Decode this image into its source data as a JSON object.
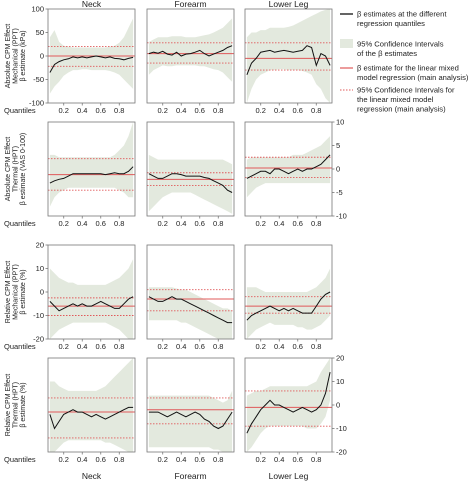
{
  "colors": {
    "band": "#e3e9de",
    "series": "#111111",
    "regression": "#e0595a",
    "frame": "#777777"
  },
  "chart_data": {
    "type": "line",
    "columns": [
      "Neck",
      "Forearm",
      "Lower Leg"
    ],
    "bottom_columns": [
      "Neck",
      "Forearm",
      "Lower Leg"
    ],
    "x_label": "Quantiles",
    "x_ticks": [
      "0.2",
      "0.4",
      "0.6",
      "0.8"
    ],
    "x": [
      0.05,
      0.1,
      0.15,
      0.2,
      0.25,
      0.3,
      0.35,
      0.4,
      0.45,
      0.5,
      0.55,
      0.6,
      0.65,
      0.7,
      0.75,
      0.8,
      0.85,
      0.9,
      0.95
    ],
    "xlim": [
      0.03,
      0.97
    ],
    "legend": [
      {
        "kind": "line",
        "text": [
          "β estimates at the different",
          "regression quantiles"
        ]
      },
      {
        "kind": "band",
        "text": [
          "95% Confidence Intervals",
          "of the β estimates"
        ]
      },
      {
        "kind": "solid",
        "text": [
          "β estimate for the linear mixed",
          "model regression (main analysis)"
        ]
      },
      {
        "kind": "dotted",
        "text": [
          "95% Confidence Intervals for",
          "the linear mixed model",
          "regression (main analysis)"
        ]
      }
    ],
    "rows": [
      {
        "ylabel": [
          "Absolute CPM Effect",
          "Mechanical (PPT)",
          "β estimate (kPa)"
        ],
        "ylim": [
          -100,
          100
        ],
        "yticks": [
          -100,
          -50,
          0,
          50,
          100
        ],
        "ytick_side": "left",
        "panels": [
          {
            "beta": [
              -35,
              -18,
              -12,
              -8,
              -6,
              -2,
              -4,
              -2,
              -4,
              -2,
              0,
              -2,
              -4,
              -2,
              -5,
              -6,
              -8,
              -5,
              -3
            ],
            "lo": [
              -80,
              -65,
              -55,
              -42,
              -35,
              -30,
              -30,
              -28,
              -28,
              -30,
              -30,
              -30,
              -30,
              -32,
              -35,
              -40,
              -50,
              -60,
              -70
            ],
            "hi": [
              40,
              55,
              30,
              22,
              20,
              18,
              18,
              18,
              18,
              18,
              18,
              18,
              18,
              20,
              22,
              28,
              40,
              60,
              80
            ],
            "reg": 0,
            "ci": [
              -22,
              20
            ]
          },
          {
            "beta": [
              5,
              8,
              6,
              10,
              4,
              2,
              8,
              0,
              4,
              5,
              8,
              12,
              5,
              0,
              4,
              8,
              12,
              18,
              22
            ],
            "lo": [
              -40,
              -30,
              -25,
              -20,
              -22,
              -22,
              -20,
              -20,
              -20,
              -20,
              -20,
              -22,
              -22,
              -25,
              -28,
              -30,
              -35,
              -45,
              -55
            ],
            "hi": [
              30,
              35,
              40,
              40,
              40,
              42,
              42,
              42,
              40,
              40,
              40,
              42,
              44,
              46,
              50,
              55,
              60,
              70,
              80
            ],
            "reg": 5,
            "ci": [
              -15,
              28
            ]
          },
          {
            "beta": [
              -40,
              -15,
              -5,
              8,
              10,
              12,
              8,
              10,
              12,
              10,
              8,
              10,
              12,
              22,
              18,
              -20,
              5,
              0,
              -20
            ],
            "lo": [
              -100,
              -70,
              -50,
              -40,
              -35,
              -30,
              -30,
              -28,
              -28,
              -30,
              -30,
              -30,
              -32,
              -35,
              -40,
              -60,
              -70,
              -90,
              -100
            ],
            "hi": [
              40,
              50,
              50,
              55,
              55,
              60,
              60,
              60,
              60,
              62,
              65,
              70,
              75,
              80,
              85,
              90,
              95,
              98,
              100
            ],
            "reg": -5,
            "ci": [
              -30,
              28
            ]
          }
        ]
      },
      {
        "ylabel": [
          "Absolute CPM Effect",
          "Thermal (HPT)",
          "β estimate (VAS 0-100)"
        ],
        "ylim": [
          -10,
          10
        ],
        "yticks": [
          -10,
          -5,
          0,
          5,
          10
        ],
        "ytick_side": "right",
        "panels": [
          {
            "beta": [
              -3,
              -2.5,
              -2.2,
              -2,
              -1.5,
              -1,
              -1,
              -1,
              -1,
              -1,
              -1,
              -1,
              -1.2,
              -1,
              -0.8,
              -1,
              -1,
              -0.5,
              0.5
            ],
            "lo": [
              -8,
              -6,
              -5,
              -4.5,
              -4,
              -4,
              -4,
              -4,
              -4,
              -4,
              -4,
              -4,
              -4,
              -4,
              -4,
              -4.5,
              -5,
              -6,
              -6
            ],
            "hi": [
              3,
              3,
              2.5,
              2.5,
              2.5,
              2.5,
              2.5,
              2.5,
              2.5,
              2.5,
              2.5,
              2.5,
              2.5,
              2.5,
              3,
              4,
              5,
              7,
              10
            ],
            "reg": -1.2,
            "ci": [
              -4.5,
              2.2
            ]
          },
          {
            "beta": [
              -1,
              -1.5,
              -2,
              -2,
              -1.5,
              -1,
              -1,
              -1.2,
              -1.5,
              -1.5,
              -1.5,
              -1.5,
              -1.8,
              -2,
              -2.5,
              -3,
              -3.5,
              -4.5,
              -5
            ],
            "lo": [
              -9,
              -8,
              -7,
              -6,
              -5.5,
              -5,
              -5,
              -5,
              -5,
              -5,
              -5.5,
              -6,
              -6.5,
              -7,
              -7.5,
              -8,
              -8.5,
              -9,
              -9.5
            ],
            "hi": [
              3,
              2.5,
              2,
              2,
              2,
              2,
              2,
              2,
              2,
              2,
              2,
              2,
              2,
              2,
              2,
              2,
              2,
              1.5,
              1
            ],
            "reg": -2.2,
            "ci": [
              -3.5,
              -0.8
            ]
          },
          {
            "beta": [
              -2,
              -1.5,
              -1,
              -0.5,
              -0.5,
              -1,
              0,
              0,
              -0.5,
              -1,
              -0.5,
              0,
              -0.5,
              0,
              0,
              0.5,
              1,
              2,
              3
            ],
            "lo": [
              -6,
              -5,
              -4,
              -3.5,
              -3,
              -3,
              -3,
              -3,
              -3,
              -3,
              -3,
              -3,
              -3,
              -3,
              -3,
              -3,
              -3,
              -3,
              -3
            ],
            "hi": [
              2,
              2.5,
              2.5,
              2.5,
              2.5,
              2.5,
              2.5,
              2.5,
              2.5,
              2.5,
              3,
              3,
              3,
              3.5,
              4,
              4.5,
              5,
              6,
              7
            ],
            "reg": 0.2,
            "ci": [
              -1.8,
              2.5
            ]
          }
        ]
      },
      {
        "ylabel": [
          "Relative CPM Effect",
          "Mechanical (PPT)",
          "β estimate (%)"
        ],
        "ylim": [
          -20,
          20
        ],
        "yticks": [
          -20,
          -10,
          0,
          10,
          20
        ],
        "ytick_side": "left",
        "panels": [
          {
            "beta": [
              -4,
              -6,
              -8,
              -7,
              -6,
              -5,
              -6,
              -5,
              -6,
              -6,
              -5,
              -4,
              -5,
              -6,
              -7,
              -7,
              -5,
              -3,
              -2
            ],
            "lo": [
              -20,
              -18,
              -16,
              -15,
              -14,
              -13,
              -13,
              -13,
              -13,
              -13,
              -13,
              -13,
              -13,
              -14,
              -15,
              -16,
              -18,
              -20,
              -20
            ],
            "hi": [
              10,
              8,
              6,
              5,
              4,
              4,
              3,
              3,
              3,
              3,
              3,
              3,
              3,
              4,
              5,
              6,
              8,
              10,
              14
            ],
            "reg": -6,
            "ci": [
              -10,
              -2.5
            ]
          },
          {
            "beta": [
              -2,
              -3,
              -4,
              -4,
              -3,
              -2,
              -3,
              -3,
              -4,
              -5,
              -6,
              -7,
              -8,
              -9,
              -10,
              -11,
              -12,
              -13,
              -13
            ],
            "lo": [
              -12,
              -12,
              -12,
              -12,
              -12,
              -12,
              -12,
              -13,
              -13,
              -14,
              -15,
              -16,
              -17,
              -18,
              -19,
              -20,
              -20,
              -20,
              -20
            ],
            "hi": [
              2,
              2,
              2,
              2,
              2,
              2,
              1.5,
              1,
              1,
              0,
              -1,
              -2,
              -3,
              -4,
              -5,
              -6,
              -7,
              -7,
              -8
            ],
            "reg": -3,
            "ci": [
              -8,
              1
            ]
          },
          {
            "beta": [
              -12,
              -10,
              -9,
              -8,
              -7,
              -6,
              -7,
              -8,
              -7,
              -8,
              -7,
              -8,
              -9,
              -9,
              -9,
              -6,
              -3,
              -1,
              0
            ],
            "lo": [
              -20,
              -18,
              -16,
              -15,
              -14,
              -13,
              -14,
              -14,
              -14,
              -14,
              -14,
              -15,
              -15,
              -16,
              -16,
              -15,
              -14,
              -12,
              -10
            ],
            "hi": [
              2,
              2,
              2,
              1,
              0,
              0,
              0,
              0,
              0,
              0,
              0,
              0,
              0,
              0,
              1,
              2,
              4,
              6,
              10
            ],
            "reg": -6,
            "ci": [
              -9,
              -2
            ]
          }
        ]
      },
      {
        "ylabel": [
          "Relative CPM Effect",
          "Thermal (HPT)",
          "β estimate (%)"
        ],
        "ylim": [
          -20,
          20
        ],
        "yticks": [
          -20,
          -10,
          0,
          10,
          20
        ],
        "ytick_side": "right",
        "panels": [
          {
            "beta": [
              -4,
              -10,
              -7,
              -4,
              -3,
              -2,
              -3,
              -3,
              -4,
              -5,
              -4,
              -5,
              -6,
              -5,
              -4,
              -3,
              -2,
              -1,
              -1
            ],
            "lo": [
              -20,
              -20,
              -18,
              -16,
              -15,
              -15,
              -15,
              -15,
              -15,
              -15,
              -15,
              -15,
              -16,
              -16,
              -17,
              -18,
              -19,
              -20,
              -20
            ],
            "hi": [
              10,
              10,
              8,
              7,
              6,
              6,
              6,
              6,
              6,
              6,
              6,
              7,
              8,
              10,
              12,
              14,
              16,
              18,
              20
            ],
            "reg": -3,
            "ci": [
              -14,
              3
            ]
          },
          {
            "beta": [
              -3,
              -3,
              -3,
              -4,
              -5,
              -4,
              -3,
              -4,
              -5,
              -4,
              -3,
              -4,
              -6,
              -7,
              -9,
              -10,
              -9,
              -6,
              -3
            ],
            "lo": [
              -18,
              -18,
              -18,
              -18,
              -18,
              -18,
              -18,
              -18,
              -18,
              -18,
              -18,
              -18,
              -18,
              -18,
              -19,
              -19,
              -20,
              -20,
              -20
            ],
            "hi": [
              4,
              4,
              4,
              4,
              4,
              4,
              4,
              4,
              4,
              4,
              4,
              4,
              4,
              4,
              3,
              2,
              1,
              2,
              6
            ],
            "reg": -2,
            "ci": [
              -8,
              3
            ]
          },
          {
            "beta": [
              -12,
              -8,
              -5,
              -2,
              0,
              2,
              0,
              0,
              -1,
              -2,
              -3,
              -2,
              -1,
              -2,
              -3,
              -2,
              0,
              5,
              14
            ],
            "lo": [
              -20,
              -18,
              -15,
              -12,
              -10,
              -9,
              -9,
              -9,
              -9,
              -9,
              -9,
              -9,
              -9,
              -10,
              -10,
              -10,
              -8,
              -5,
              2
            ],
            "hi": [
              4,
              5,
              6,
              6,
              7,
              8,
              8,
              8,
              8,
              8,
              8,
              8,
              8,
              8,
              9,
              10,
              14,
              17,
              20
            ],
            "reg": -1,
            "ci": [
              -9,
              6
            ]
          }
        ]
      }
    ]
  }
}
